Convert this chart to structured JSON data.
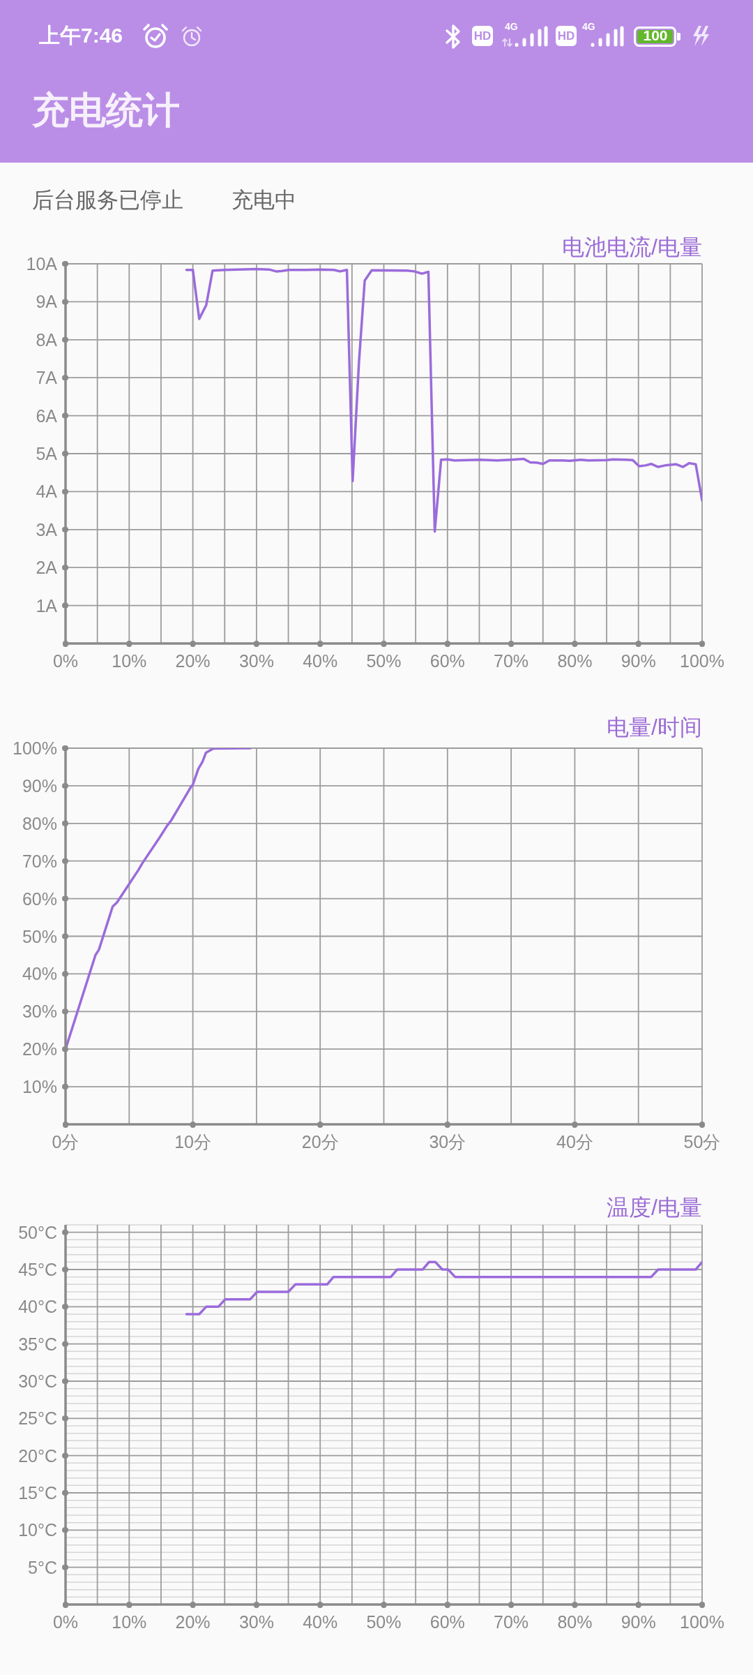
{
  "chart_data": [
    {
      "type": "other",
      "title": "充电统计",
      "annotations": [
        "上午7:46",
        "HD",
        "4G",
        "HD",
        "4G",
        "100",
        "后台服务已停止",
        "充电中"
      ]
    },
    {
      "type": "line",
      "title": "电池电流/电量",
      "color": "#9b6bdb",
      "grid": true,
      "x": [
        19.0,
        20.0,
        21.0,
        22.1,
        23.1,
        25.0,
        30.0,
        32.0,
        33.1,
        34.0,
        35.1,
        37.8,
        40.0,
        42.2,
        43.1,
        44.2,
        45.1,
        46.1,
        47.0,
        48.1,
        53.7,
        54.8,
        56.0,
        57.0,
        58.0,
        59.0,
        60.0,
        61.1,
        65.1,
        67.8,
        70.0,
        72.0,
        73.0,
        74.1,
        75.0,
        76.0,
        78.1,
        79.2,
        81.0,
        82.1,
        85.0,
        86.0,
        88.0,
        89.1,
        90.1,
        91.1,
        92.0,
        93.1,
        94.2,
        95.9,
        97.0,
        98.0,
        99.0,
        100
      ],
      "values": [
        9.84,
        9.84,
        8.55,
        8.91,
        9.82,
        9.84,
        9.86,
        9.85,
        9.8,
        9.81,
        9.84,
        9.84,
        9.85,
        9.84,
        9.8,
        9.84,
        4.28,
        7.42,
        9.56,
        9.83,
        9.82,
        9.8,
        9.74,
        9.79,
        2.95,
        4.84,
        4.85,
        4.82,
        4.84,
        4.82,
        4.84,
        4.86,
        4.77,
        4.76,
        4.73,
        4.82,
        4.82,
        4.81,
        4.84,
        4.82,
        4.83,
        4.85,
        4.84,
        4.83,
        4.67,
        4.69,
        4.73,
        4.65,
        4.69,
        4.72,
        4.65,
        4.75,
        4.72,
        3.77
      ],
      "xlim": [
        0,
        100
      ],
      "xticks": [
        {
          "value": 0,
          "label": "0%"
        },
        {
          "value": 5,
          "label": null
        },
        {
          "value": 10,
          "label": "10%"
        },
        {
          "value": 15,
          "label": null
        },
        {
          "value": 20,
          "label": "20%"
        },
        {
          "value": 25,
          "label": null
        },
        {
          "value": 30,
          "label": "30%"
        },
        {
          "value": 35,
          "label": null
        },
        {
          "value": 40,
          "label": "40%"
        },
        {
          "value": 45,
          "label": null
        },
        {
          "value": 50,
          "label": "50%"
        },
        {
          "value": 55,
          "label": null
        },
        {
          "value": 60,
          "label": "60%"
        },
        {
          "value": 65,
          "label": null
        },
        {
          "value": 70,
          "label": "70%"
        },
        {
          "value": 75,
          "label": null
        },
        {
          "value": 80,
          "label": "80%"
        },
        {
          "value": 85,
          "label": null
        },
        {
          "value": 90,
          "label": "90%"
        },
        {
          "value": 95,
          "label": null
        },
        {
          "value": 100,
          "label": "100%"
        }
      ],
      "ylim": [
        0,
        10
      ],
      "yticks": [
        {
          "value": 0,
          "label": null
        },
        {
          "value": 1,
          "label": "1A"
        },
        {
          "value": 2,
          "label": "2A"
        },
        {
          "value": 3,
          "label": "3A"
        },
        {
          "value": 4,
          "label": "4A"
        },
        {
          "value": 5,
          "label": "5A"
        },
        {
          "value": 6,
          "label": "6A"
        },
        {
          "value": 7,
          "label": "7A"
        },
        {
          "value": 8,
          "label": "8A"
        },
        {
          "value": 9,
          "label": "9A"
        },
        {
          "value": 10,
          "label": "10A"
        }
      ]
    },
    {
      "type": "line",
      "title": "电量/时间",
      "color": "#9b6bdb",
      "grid": true,
      "x": [
        0,
        2.35,
        2.62,
        3.7,
        4.04,
        5.0,
        5.72,
        6.05,
        7.4,
        7.96,
        8.3,
        9.87,
        10.0,
        10.43,
        10.76,
        11.03,
        11.61,
        14.53
      ],
      "values": [
        20,
        45.0,
        46.4,
        57.9,
        59.0,
        63.9,
        67.6,
        69.5,
        76.3,
        79.3,
        80.8,
        89.8,
        90.3,
        94.5,
        96.4,
        98.8,
        99.9,
        100
      ],
      "xlim": [
        0,
        50
      ],
      "xticks": [
        {
          "value": 0,
          "label": "0分"
        },
        {
          "value": 5,
          "label": null
        },
        {
          "value": 10,
          "label": "10分"
        },
        {
          "value": 15,
          "label": null
        },
        {
          "value": 20,
          "label": "20分"
        },
        {
          "value": 25,
          "label": null
        },
        {
          "value": 30,
          "label": "30分"
        },
        {
          "value": 35,
          "label": null
        },
        {
          "value": 40,
          "label": "40分"
        },
        {
          "value": 45,
          "label": null
        },
        {
          "value": 50,
          "label": "50分"
        }
      ],
      "ylim": [
        0,
        100
      ],
      "yticks": [
        {
          "value": 0,
          "label": null
        },
        {
          "value": 10,
          "label": "10%"
        },
        {
          "value": 20,
          "label": "20%"
        },
        {
          "value": 30,
          "label": "30%"
        },
        {
          "value": 40,
          "label": "40%"
        },
        {
          "value": 50,
          "label": "50%"
        },
        {
          "value": 60,
          "label": "60%"
        },
        {
          "value": 70,
          "label": "70%"
        },
        {
          "value": 80,
          "label": "80%"
        },
        {
          "value": 90,
          "label": "90%"
        },
        {
          "value": 100,
          "label": "100%"
        }
      ]
    },
    {
      "type": "line",
      "title": "温度/电量",
      "color": "#9b6bdb",
      "grid": true,
      "x": [
        19.0,
        21.0,
        22.1,
        24.0,
        25.1,
        29.0,
        30.1,
        35.0,
        36.1,
        41.1,
        42.1,
        51.1,
        52.1,
        56.1,
        57.1,
        58.1,
        59.2,
        60.1,
        61.2,
        92.0,
        93.1,
        99.0,
        100
      ],
      "values": [
        39,
        39,
        40,
        40,
        41,
        41,
        42,
        42,
        43,
        43,
        44,
        44,
        45,
        45,
        46,
        46,
        45,
        45,
        44,
        44,
        45,
        45,
        46
      ],
      "xlim": [
        0,
        100
      ],
      "xticks": [
        {
          "value": 0,
          "label": "0%"
        },
        {
          "value": 5,
          "label": null
        },
        {
          "value": 10,
          "label": "10%"
        },
        {
          "value": 15,
          "label": null
        },
        {
          "value": 20,
          "label": "20%"
        },
        {
          "value": 25,
          "label": null
        },
        {
          "value": 30,
          "label": "30%"
        },
        {
          "value": 35,
          "label": null
        },
        {
          "value": 40,
          "label": "40%"
        },
        {
          "value": 45,
          "label": null
        },
        {
          "value": 50,
          "label": "50%"
        },
        {
          "value": 55,
          "label": null
        },
        {
          "value": 60,
          "label": "60%"
        },
        {
          "value": 65,
          "label": null
        },
        {
          "value": 70,
          "label": "70%"
        },
        {
          "value": 75,
          "label": null
        },
        {
          "value": 80,
          "label": "80%"
        },
        {
          "value": 85,
          "label": null
        },
        {
          "value": 90,
          "label": "90%"
        },
        {
          "value": 95,
          "label": null
        },
        {
          "value": 100,
          "label": "100%"
        }
      ],
      "ylim": [
        0,
        51
      ],
      "yticks": [
        {
          "value": 0,
          "label": null
        },
        {
          "value": 1,
          "label": null
        },
        {
          "value": 2,
          "label": null
        },
        {
          "value": 3,
          "label": null
        },
        {
          "value": 4,
          "label": null
        },
        {
          "value": 5,
          "label": "5°C"
        },
        {
          "value": 6,
          "label": null
        },
        {
          "value": 7,
          "label": null
        },
        {
          "value": 8,
          "label": null
        },
        {
          "value": 9,
          "label": null
        },
        {
          "value": 10,
          "label": "10°C"
        },
        {
          "value": 11,
          "label": null
        },
        {
          "value": 12,
          "label": null
        },
        {
          "value": 13,
          "label": null
        },
        {
          "value": 14,
          "label": null
        },
        {
          "value": 15,
          "label": "15°C"
        },
        {
          "value": 16,
          "label": null
        },
        {
          "value": 17,
          "label": null
        },
        {
          "value": 18,
          "label": null
        },
        {
          "value": 19,
          "label": null
        },
        {
          "value": 20,
          "label": "20°C"
        },
        {
          "value": 21,
          "label": null
        },
        {
          "value": 22,
          "label": null
        },
        {
          "value": 23,
          "label": null
        },
        {
          "value": 24,
          "label": null
        },
        {
          "value": 25,
          "label": "25°C"
        },
        {
          "value": 26,
          "label": null
        },
        {
          "value": 27,
          "label": null
        },
        {
          "value": 28,
          "label": null
        },
        {
          "value": 29,
          "label": null
        },
        {
          "value": 30,
          "label": "30°C"
        },
        {
          "value": 31,
          "label": null
        },
        {
          "value": 32,
          "label": null
        },
        {
          "value": 33,
          "label": null
        },
        {
          "value": 34,
          "label": null
        },
        {
          "value": 35,
          "label": "35°C"
        },
        {
          "value": 36,
          "label": null
        },
        {
          "value": 37,
          "label": null
        },
        {
          "value": 38,
          "label": null
        },
        {
          "value": 39,
          "label": null
        },
        {
          "value": 40,
          "label": "40°C"
        },
        {
          "value": 41,
          "label": null
        },
        {
          "value": 42,
          "label": null
        },
        {
          "value": 43,
          "label": null
        },
        {
          "value": 44,
          "label": null
        },
        {
          "value": 45,
          "label": "45°C"
        },
        {
          "value": 46,
          "label": null
        },
        {
          "value": 47,
          "label": null
        },
        {
          "value": 48,
          "label": null
        },
        {
          "value": 49,
          "label": null
        },
        {
          "value": 50,
          "label": "50°C"
        },
        {
          "value": 51,
          "label": null
        }
      ]
    }
  ]
}
